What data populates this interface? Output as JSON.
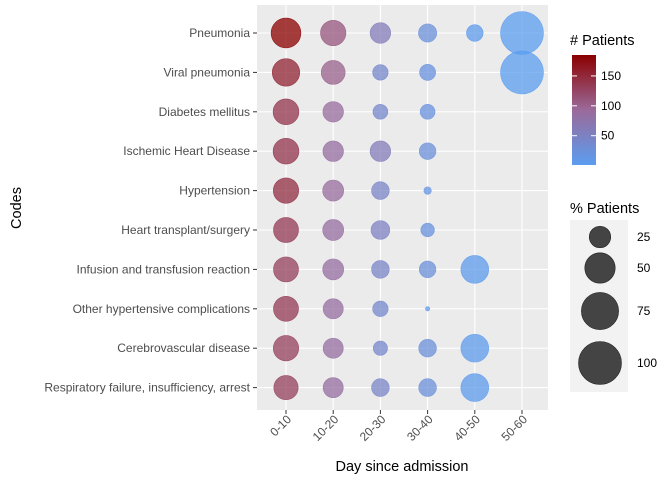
{
  "chart_data": {
    "type": "scatter",
    "title": "",
    "xlabel": "Day since admission",
    "ylabel": "Codes",
    "categories_x": [
      "0-10",
      "10-20",
      "20-30",
      "30-40",
      "40-50",
      "50-60"
    ],
    "categories_y": [
      "Pneumonia",
      "Viral pneumonia",
      "Diabetes mellitus",
      "Ischemic Heart Disease",
      "Hypertension",
      "Heart transplant/surgery",
      "Infusion and transfusion reaction",
      "Other hypertensive complications",
      "Cerebrovascular disease",
      "Respiratory failure, insufficiency, arrest"
    ],
    "points": [
      {
        "y": "Pneumonia",
        "x": "0-10",
        "patients": 185,
        "percent": 48
      },
      {
        "y": "Pneumonia",
        "x": "10-20",
        "patients": 110,
        "percent": 35
      },
      {
        "y": "Pneumonia",
        "x": "20-30",
        "patients": 60,
        "percent": 23
      },
      {
        "y": "Pneumonia",
        "x": "30-40",
        "patients": 25,
        "percent": 18
      },
      {
        "y": "Pneumonia",
        "x": "40-50",
        "patients": 5,
        "percent": 15
      },
      {
        "y": "Pneumonia",
        "x": "50-60",
        "patients": 1,
        "percent": 100
      },
      {
        "y": "Viral pneumonia",
        "x": "0-10",
        "patients": 155,
        "percent": 41
      },
      {
        "y": "Viral pneumonia",
        "x": "10-20",
        "patients": 100,
        "percent": 31
      },
      {
        "y": "Viral pneumonia",
        "x": "20-30",
        "patients": 40,
        "percent": 13
      },
      {
        "y": "Viral pneumonia",
        "x": "30-40",
        "patients": 20,
        "percent": 14
      },
      {
        "y": "Viral pneumonia",
        "x": "50-60",
        "patients": 1,
        "percent": 100
      },
      {
        "y": "Diabetes mellitus",
        "x": "0-10",
        "patients": 140,
        "percent": 36
      },
      {
        "y": "Diabetes mellitus",
        "x": "10-20",
        "patients": 90,
        "percent": 23
      },
      {
        "y": "Diabetes mellitus",
        "x": "20-30",
        "patients": 40,
        "percent": 12
      },
      {
        "y": "Diabetes mellitus",
        "x": "30-40",
        "patients": 20,
        "percent": 12
      },
      {
        "y": "Ischemic Heart Disease",
        "x": "0-10",
        "patients": 140,
        "percent": 36
      },
      {
        "y": "Ischemic Heart Disease",
        "x": "10-20",
        "patients": 85,
        "percent": 23
      },
      {
        "y": "Ischemic Heart Disease",
        "x": "20-30",
        "patients": 60,
        "percent": 23
      },
      {
        "y": "Ischemic Heart Disease",
        "x": "30-40",
        "patients": 25,
        "percent": 15
      },
      {
        "y": "Hypertension",
        "x": "0-10",
        "patients": 145,
        "percent": 35
      },
      {
        "y": "Hypertension",
        "x": "10-20",
        "patients": 90,
        "percent": 24
      },
      {
        "y": "Hypertension",
        "x": "20-30",
        "patients": 45,
        "percent": 17
      },
      {
        "y": "Hypertension",
        "x": "30-40",
        "patients": 15,
        "percent": 3
      },
      {
        "y": "Heart transplant/surgery",
        "x": "0-10",
        "patients": 135,
        "percent": 34
      },
      {
        "y": "Heart transplant/surgery",
        "x": "10-20",
        "patients": 85,
        "percent": 24
      },
      {
        "y": "Heart transplant/surgery",
        "x": "20-30",
        "patients": 50,
        "percent": 19
      },
      {
        "y": "Heart transplant/surgery",
        "x": "30-40",
        "patients": 20,
        "percent": 10
      },
      {
        "y": "Infusion and transfusion reaction",
        "x": "0-10",
        "patients": 130,
        "percent": 34
      },
      {
        "y": "Infusion and transfusion reaction",
        "x": "10-20",
        "patients": 85,
        "percent": 24
      },
      {
        "y": "Infusion and transfusion reaction",
        "x": "20-30",
        "patients": 45,
        "percent": 17
      },
      {
        "y": "Infusion and transfusion reaction",
        "x": "30-40",
        "patients": 25,
        "percent": 15
      },
      {
        "y": "Infusion and transfusion reaction",
        "x": "40-50",
        "patients": 5,
        "percent": 42
      },
      {
        "y": "Other hypertensive complications",
        "x": "0-10",
        "patients": 135,
        "percent": 34
      },
      {
        "y": "Other hypertensive complications",
        "x": "10-20",
        "patients": 85,
        "percent": 22
      },
      {
        "y": "Other hypertensive complications",
        "x": "20-30",
        "patients": 40,
        "percent": 13
      },
      {
        "y": "Other hypertensive complications",
        "x": "30-40",
        "patients": 10,
        "percent": 1
      },
      {
        "y": "Cerebrovascular disease",
        "x": "0-10",
        "patients": 130,
        "percent": 35
      },
      {
        "y": "Cerebrovascular disease",
        "x": "10-20",
        "patients": 85,
        "percent": 22
      },
      {
        "y": "Cerebrovascular disease",
        "x": "20-30",
        "patients": 40,
        "percent": 11
      },
      {
        "y": "Cerebrovascular disease",
        "x": "30-40",
        "patients": 25,
        "percent": 17
      },
      {
        "y": "Cerebrovascular disease",
        "x": "40-50",
        "patients": 5,
        "percent": 42
      },
      {
        "y": "Respiratory failure, insufficiency, arrest",
        "x": "0-10",
        "patients": 130,
        "percent": 32
      },
      {
        "y": "Respiratory failure, insufficiency, arrest",
        "x": "10-20",
        "patients": 85,
        "percent": 22
      },
      {
        "y": "Respiratory failure, insufficiency, arrest",
        "x": "20-30",
        "patients": 45,
        "percent": 17
      },
      {
        "y": "Respiratory failure, insufficiency, arrest",
        "x": "30-40",
        "patients": 25,
        "percent": 17
      },
      {
        "y": "Respiratory failure, insufficiency, arrest",
        "x": "40-50",
        "patients": 5,
        "percent": 42
      }
    ],
    "color_legend": {
      "title": "# Patients",
      "ticks": [
        50,
        100,
        150
      ],
      "range": [
        1,
        185
      ],
      "color_low": "#5b9df0",
      "color_high": "#8b0000"
    },
    "size_legend": {
      "title": "% Patients",
      "values": [
        25,
        50,
        75,
        100
      ],
      "color": "#444444"
    },
    "panel_background": "#ebebeb",
    "grid": true
  }
}
